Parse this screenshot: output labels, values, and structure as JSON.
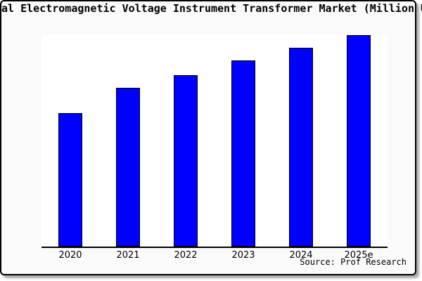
{
  "title": "Global Electromagnetic Voltage Instrument Transformer Market (Million USD)",
  "source": "Source: Prof Research",
  "colors": {
    "bar_fill": "#0000ff",
    "bar_border": "#000000",
    "card_bg": "#fafafa",
    "plot_bg": "#ffffff",
    "frame_border": "#000000",
    "shadow": "#aaaaaa"
  },
  "chart_data": {
    "type": "bar",
    "categories": [
      "2020",
      "2021",
      "2022",
      "2023",
      "2024",
      "2025e"
    ],
    "values": [
      63,
      75,
      81,
      88,
      94,
      100
    ],
    "value_note": "no y-axis ticks or labels are shown in the image; values are relative bar heights with the tallest bar (2025e) = 100",
    "title": "Global Electromagnetic Voltage Instrument Transformer Market (Million USD)",
    "xlabel": "",
    "ylabel": "",
    "ylim": [
      0,
      100
    ],
    "grid": false,
    "legend": false,
    "bar_color": "#0000ff",
    "source": "Source: Prof Research"
  }
}
